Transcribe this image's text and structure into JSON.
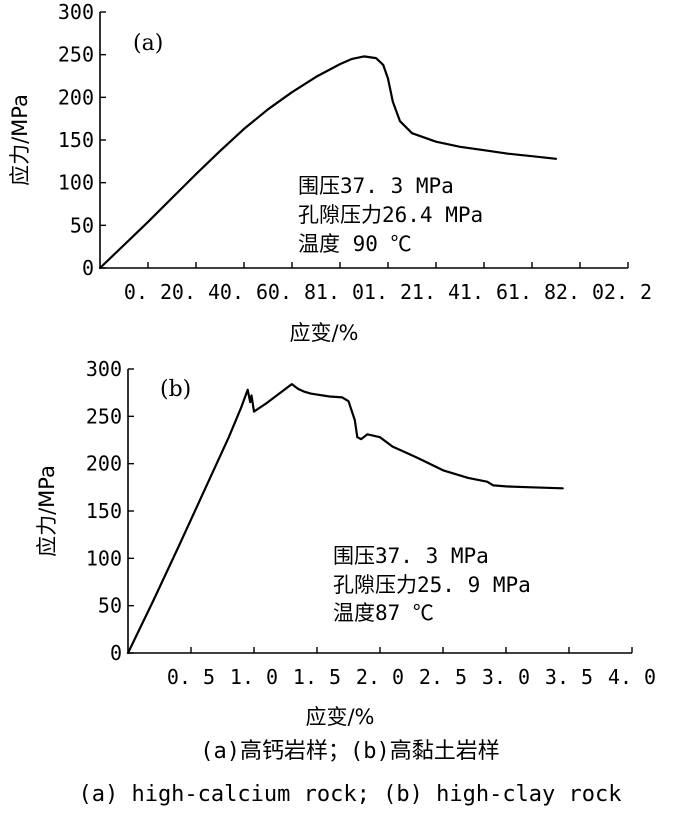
{
  "chart_data": [
    {
      "type": "line",
      "panel_label": "(a)",
      "xlabel": "应变/%",
      "ylabel": "应力/MPa",
      "xlim": [
        0,
        2.2
      ],
      "ylim": [
        0,
        300
      ],
      "xticks": [
        0.2,
        0.4,
        0.6,
        0.8,
        1.0,
        1.2,
        1.4,
        1.6,
        1.8,
        2.0,
        2.2
      ],
      "xtick_labels": [
        "0. 2",
        "0. 4",
        "0. 6",
        "0. 8",
        "1. 0",
        "1. 2",
        "1. 4",
        "1. 6",
        "1. 8",
        "2. 0",
        "2. 2"
      ],
      "yticks": [
        0,
        50,
        100,
        150,
        200,
        250,
        300
      ],
      "ytick_labels": [
        "0",
        "50",
        "100",
        "150",
        "200",
        "250",
        "300"
      ],
      "annotations": [
        "围压37. 3 MPa",
        "孔隙压力26.4 MPa",
        "温度 90 ℃"
      ],
      "series": [
        {
          "x": [
            0,
            0.1,
            0.2,
            0.3,
            0.4,
            0.5,
            0.6,
            0.7,
            0.8,
            0.9,
            1.0,
            1.05,
            1.1,
            1.15,
            1.18,
            1.2,
            1.22,
            1.25,
            1.3,
            1.4,
            1.5,
            1.6,
            1.7,
            1.8,
            1.9
          ],
          "y": [
            0,
            27,
            54,
            82,
            110,
            137,
            163,
            186,
            206,
            224,
            239,
            245,
            248,
            246,
            238,
            222,
            195,
            172,
            158,
            148,
            142,
            138,
            134,
            131,
            128
          ]
        }
      ]
    },
    {
      "type": "line",
      "panel_label": "(b)",
      "xlabel": "应变/%",
      "ylabel": "应力/MPa",
      "xlim": [
        0,
        4.0
      ],
      "ylim": [
        0,
        300
      ],
      "xticks": [
        0.5,
        1.0,
        1.5,
        2.0,
        2.5,
        3.0,
        3.5,
        4.0
      ],
      "xtick_labels": [
        "0. 5",
        "1. 0",
        "1. 5",
        "2. 0",
        "2. 5",
        "3. 0",
        "3. 5",
        "4. 0"
      ],
      "yticks": [
        0,
        50,
        100,
        150,
        200,
        250,
        300
      ],
      "ytick_labels": [
        "0",
        "50",
        "100",
        "150",
        "200",
        "250",
        "300"
      ],
      "annotations": [
        "围压37. 3 MPa",
        "孔隙压力25. 9 MPa",
        "温度87 ℃"
      ],
      "series": [
        {
          "x": [
            0,
            0.2,
            0.4,
            0.6,
            0.8,
            0.9,
            0.95,
            0.97,
            0.98,
            1.0,
            1.1,
            1.2,
            1.3,
            1.35,
            1.4,
            1.45,
            1.5,
            1.6,
            1.7,
            1.75,
            1.8,
            1.82,
            1.85,
            1.88,
            1.9,
            2.0,
            2.1,
            2.2,
            2.3,
            2.5,
            2.7,
            2.85,
            2.9,
            3.0,
            3.2,
            3.45
          ],
          "y": [
            0,
            55,
            112,
            170,
            228,
            260,
            278,
            265,
            272,
            255,
            264,
            274,
            284,
            279,
            276,
            274,
            273,
            271,
            270,
            266,
            246,
            228,
            226,
            229,
            231,
            228,
            218,
            212,
            206,
            193,
            185,
            181,
            177,
            176,
            175,
            174
          ]
        }
      ]
    }
  ],
  "caption": {
    "zh": "(a)高钙岩样；(b)高黏土岩样",
    "en": "(a) high-calcium rock; (b) high-clay rock"
  }
}
